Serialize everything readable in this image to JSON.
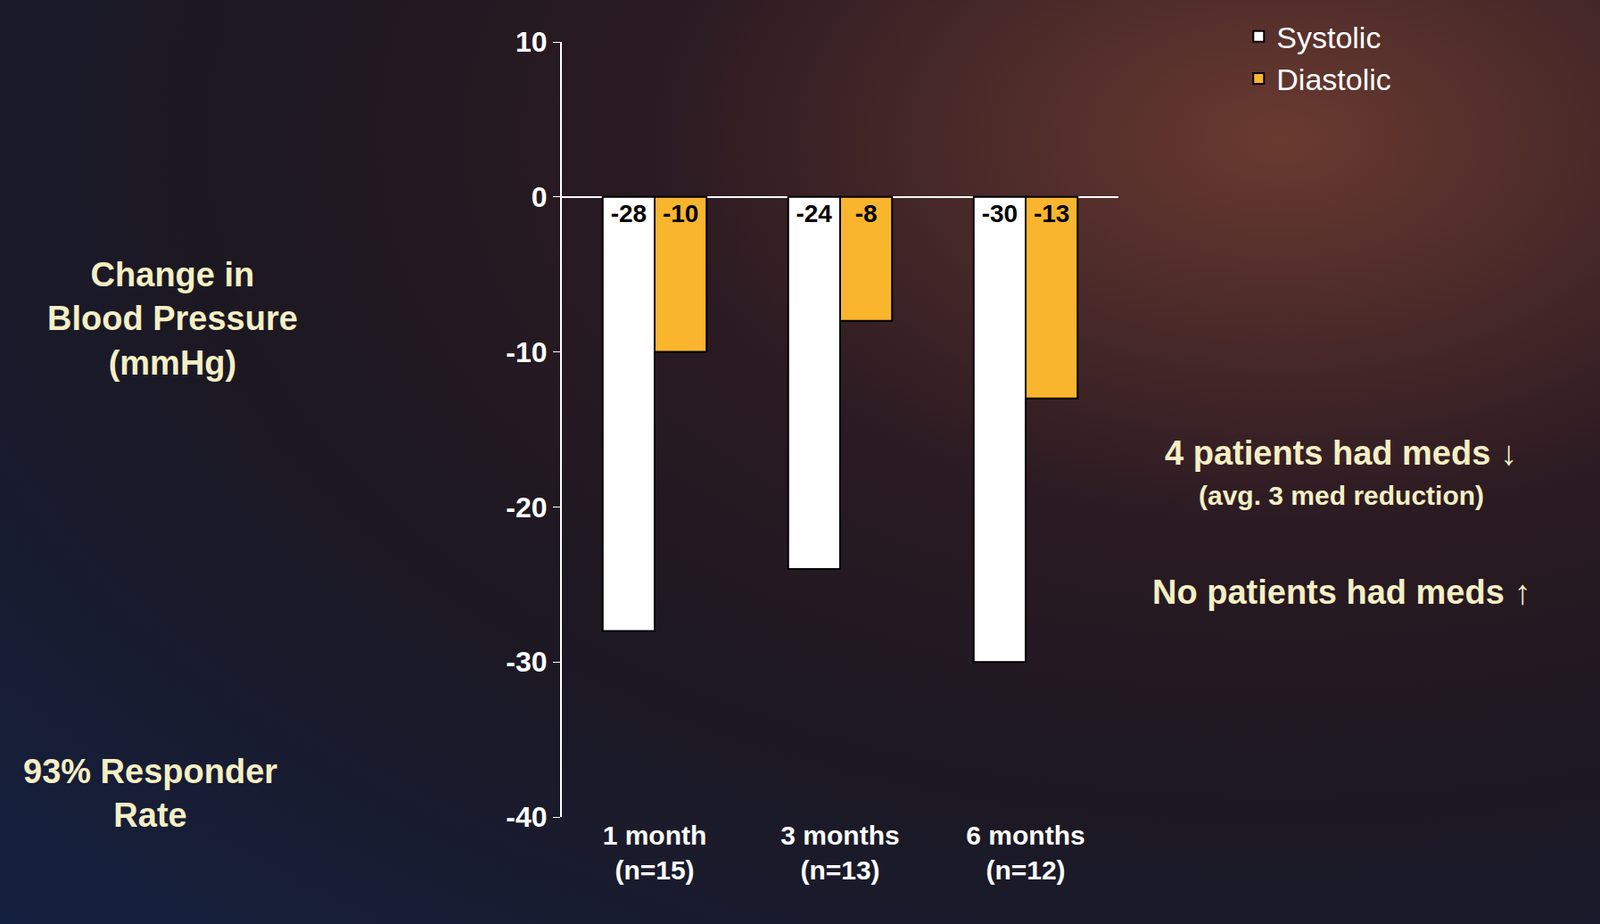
{
  "chart_data": {
    "type": "bar",
    "y_label": "Change in Blood Pressure (mmHg)",
    "categories": [
      "1 month (n=15)",
      "3 months (n=13)",
      "6 months (n=12)"
    ],
    "series": [
      {
        "name": "Systolic",
        "color": "#ffffff",
        "values": [
          -28,
          -24,
          -30
        ]
      },
      {
        "name": "Diastolic",
        "color": "#f9b52e",
        "values": [
          -10,
          -8,
          -13
        ]
      }
    ],
    "ylim": [
      -40,
      10
    ],
    "yticks": [
      -40,
      -30,
      -20,
      -10,
      0,
      10
    ],
    "grid": false,
    "legend": "top right",
    "data_labels": true,
    "annotations": [
      "4 patients had meds ↓",
      "(avg. 3 med reduction)",
      "No patients had meds ↑",
      "93% Responder Rate"
    ]
  }
}
